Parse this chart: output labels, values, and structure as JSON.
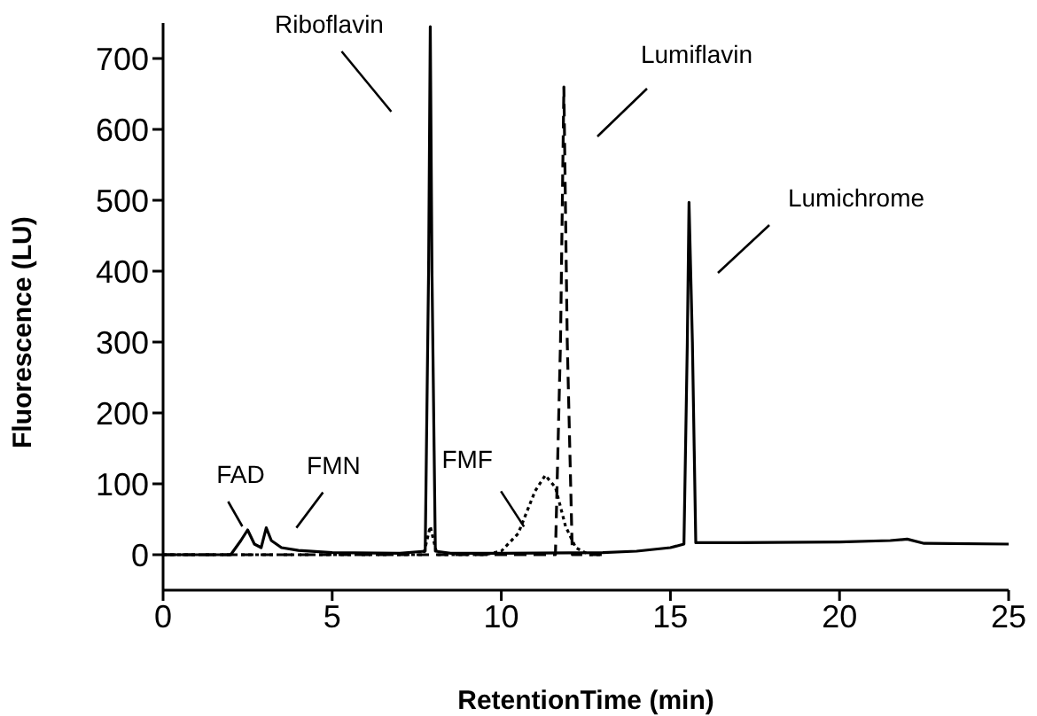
{
  "chart_data": {
    "type": "line",
    "xlabel": "RetentionTime (min)",
    "ylabel": "Fluorescence (LU)",
    "xlim": [
      0,
      25
    ],
    "xticks": [
      0,
      5,
      10,
      15,
      20,
      25
    ],
    "ylim": [
      -50,
      750
    ],
    "yticks": [
      0,
      100,
      200,
      300,
      400,
      500,
      600,
      700
    ],
    "grid": false,
    "legend": false,
    "marker": "none",
    "series": [
      {
        "color": "#000000",
        "line_style": "solid",
        "x": [
          0,
          2.0,
          2.3,
          2.5,
          2.7,
          2.9,
          3.05,
          3.2,
          3.5,
          4,
          5,
          7,
          7.75,
          7.85,
          7.9,
          7.95,
          8.05,
          8.5,
          10,
          13,
          14,
          15,
          15.4,
          15.5,
          15.55,
          15.65,
          15.75,
          17,
          20,
          21.5,
          22,
          22.5,
          25
        ],
        "values": [
          0,
          0,
          20,
          35,
          15,
          10,
          38,
          20,
          10,
          6,
          3,
          2,
          5,
          400,
          745,
          400,
          5,
          2,
          2,
          3,
          5,
          10,
          15,
          300,
          497,
          300,
          17,
          17,
          18,
          20,
          22,
          16,
          15
        ]
      },
      {
        "color": "#000000",
        "line_style": "dashed",
        "x": [
          0,
          11.6,
          11.75,
          11.85,
          11.95,
          12.1,
          13
        ],
        "values": [
          0,
          0,
          300,
          660,
          300,
          0,
          0
        ]
      },
      {
        "color": "#000000",
        "line_style": "dotted",
        "x": [
          0,
          7.7,
          7.9,
          8.1,
          9.5,
          10,
          10.5,
          11,
          11.3,
          11.6,
          11.9,
          12.2,
          12.6,
          13
        ],
        "values": [
          0,
          0,
          40,
          0,
          0,
          5,
          30,
          90,
          112,
          95,
          40,
          10,
          0,
          0
        ]
      }
    ],
    "annotations": [
      {
        "text": "Riboflavin",
        "x": 7.9,
        "y": 745
      },
      "Lumiflavin",
      "Lumichrome",
      {
        "text": "FMF",
        "x": 11.3,
        "y": 112
      },
      {
        "text": "FAD",
        "x": 2.5,
        "y": 35
      },
      {
        "text": "FMN",
        "x": 3.05,
        "y": 38
      }
    ]
  }
}
